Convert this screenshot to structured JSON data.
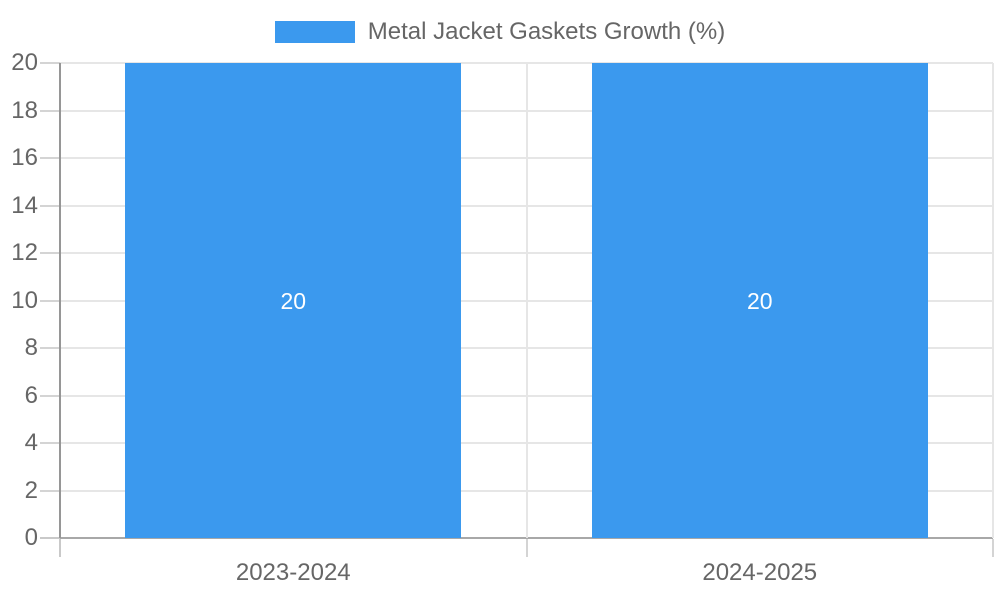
{
  "chart_data": {
    "type": "bar",
    "title": "",
    "legend_label": "Metal Jacket Gaskets Growth (%)",
    "legend_position": "top",
    "categories": [
      "2023-2024",
      "2024-2025"
    ],
    "values": [
      20,
      20
    ],
    "data_labels": [
      "20",
      "20"
    ],
    "xlabel": "",
    "ylabel": "",
    "ylim": [
      0,
      20
    ],
    "ytick_step": 2,
    "yticks": [
      0,
      2,
      4,
      6,
      8,
      10,
      12,
      14,
      16,
      18,
      20
    ],
    "grid": true,
    "colors": {
      "bar": "#3B99EE",
      "axis_text": "#666666",
      "grid_line": "#e6e6e6",
      "tick_line": "#d4d4d4",
      "below_tick_line": "#c9c9c9",
      "zero_line": "#a8a8a8",
      "axis_line": "#969696",
      "data_label_text": "#ffffff",
      "background": "#ffffff"
    }
  }
}
